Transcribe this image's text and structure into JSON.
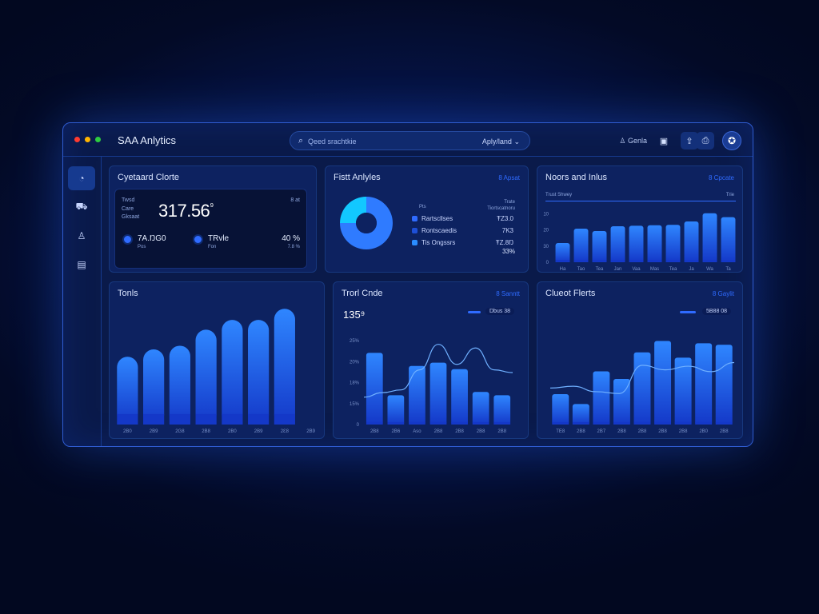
{
  "window": {
    "controls": [
      {
        "name": "close",
        "color": "#ff3b30"
      },
      {
        "name": "minimize",
        "color": "#ffb400"
      },
      {
        "name": "maximize",
        "color": "#2ecc40"
      }
    ],
    "title": "SAA Anlytics"
  },
  "search": {
    "placeholder": "Qeed srachtkie",
    "filter": "Aply/land",
    "icon": "search-icon"
  },
  "toolbar": {
    "user_label": "Genla",
    "user_icon": "user-icon",
    "calendar_icon": "calendar-icon",
    "share_icon": "share-icon",
    "bookmark_icon": "bookmark-icon",
    "avatar_icon": "globe-icon"
  },
  "sidebar": {
    "items": [
      {
        "name": "dashboard",
        "icon": "gauge-icon"
      },
      {
        "name": "bus",
        "icon": "bus-icon"
      },
      {
        "name": "users",
        "icon": "user-icon"
      },
      {
        "name": "reports",
        "icon": "document-icon"
      }
    ]
  },
  "panels": {
    "p1": {
      "title": "Cyetaard Clorte",
      "label_a": "Twsd",
      "label_b": "Care",
      "label_c": "Gksaat",
      "big_value": "317.56",
      "badge": "⁹",
      "corner": "8 at",
      "stat1": "7A.ŊG0",
      "stat1_sub": "Pos",
      "stat2": "TRvle",
      "stat2_sub": "Fon",
      "stat3": "40 %",
      "stat3_sub": "7.8 %"
    },
    "p2": {
      "title": "Fistt Anlyles",
      "link": "8 Apsat",
      "col_a": "Pts",
      "col_b": "Trate",
      "col_c": "Tiortscatnoru",
      "legend": [
        {
          "label": "Rartscllses",
          "value": "ŦZ3.0",
          "color": "#2f6bff"
        },
        {
          "label": "Rontscaedis",
          "value": "7K3",
          "color": "#1e4fd6"
        },
        {
          "label": "Tis Ongssrs",
          "value": "ŦZ.8Ŋ",
          "color": "#2a8cff"
        }
      ],
      "total": "33%"
    },
    "p3": {
      "title": "Noors and Inlus",
      "link": "8 Cpcate",
      "sub_left": "Trust Shwey",
      "sub_right": "Trie"
    },
    "p4": {
      "title": "Tonls"
    },
    "p5": {
      "title": "Trorl Cnde",
      "link": "8 Sanntt",
      "value": "135⁹",
      "pill": "Dbus 38"
    },
    "p6": {
      "title": "Clueot Flerts",
      "link": "8 Gaylit",
      "pill": "5B88 08"
    }
  },
  "chart_data": [
    {
      "type": "pie",
      "title": "Fistt Anlyles",
      "slices": [
        {
          "name": "Rartscllses",
          "value": 75,
          "color": "#2f7bff"
        },
        {
          "name": "Tis Ongssrs",
          "value": 25,
          "color": "#12c8ff"
        }
      ]
    },
    {
      "type": "bar",
      "title": "Noors and Inlus",
      "categories": [
        "Ha",
        "Tao",
        "Tea",
        "Jan",
        "Vaa",
        "Mas",
        "Tea",
        "Ja",
        "Wa",
        "Ta"
      ],
      "values": [
        4,
        7,
        6.5,
        7.5,
        7.6,
        7.7,
        7.8,
        8.5,
        10.2,
        9.4
      ],
      "ylim": [
        0,
        11
      ],
      "yticks": [
        "0",
        "30",
        "20",
        "10"
      ]
    },
    {
      "type": "bar",
      "title": "Tonls",
      "categories": [
        "2B0",
        "2B9",
        "2G8",
        "2B8",
        "2B0",
        "2B9",
        "2Ɛ8",
        "2B9"
      ],
      "values": [
        55,
        61,
        64,
        77,
        85,
        85,
        94,
        0
      ],
      "ylim": [
        0,
        100
      ]
    },
    {
      "type": "bar",
      "title": "Trorl Cnde",
      "categories": [
        "2B8",
        "2B6",
        "Aso",
        "2B8",
        "2B8",
        "2B8",
        "2B8"
      ],
      "values": [
        22,
        9,
        18,
        19,
        17,
        10,
        9
      ],
      "ylim": [
        0,
        28
      ],
      "yticks": [
        "0",
        "15%",
        "18%",
        "20%",
        "25%"
      ],
      "line": [
        30,
        35,
        38,
        60,
        88,
        66,
        84,
        60,
        57
      ]
    },
    {
      "type": "bar",
      "title": "Clueot Flerts",
      "categories": [
        "TE8",
        "2B8",
        "2B7",
        "2B8",
        "2B8",
        "2B8",
        "2B8",
        "2B0",
        "2B8"
      ],
      "values": [
        4,
        2.7,
        7,
        6,
        9.5,
        11,
        8.8,
        10.7,
        10.5
      ],
      "ylim": [
        0,
        12
      ],
      "line": [
        40,
        42,
        36,
        34,
        65,
        60,
        64,
        58,
        68
      ]
    }
  ]
}
